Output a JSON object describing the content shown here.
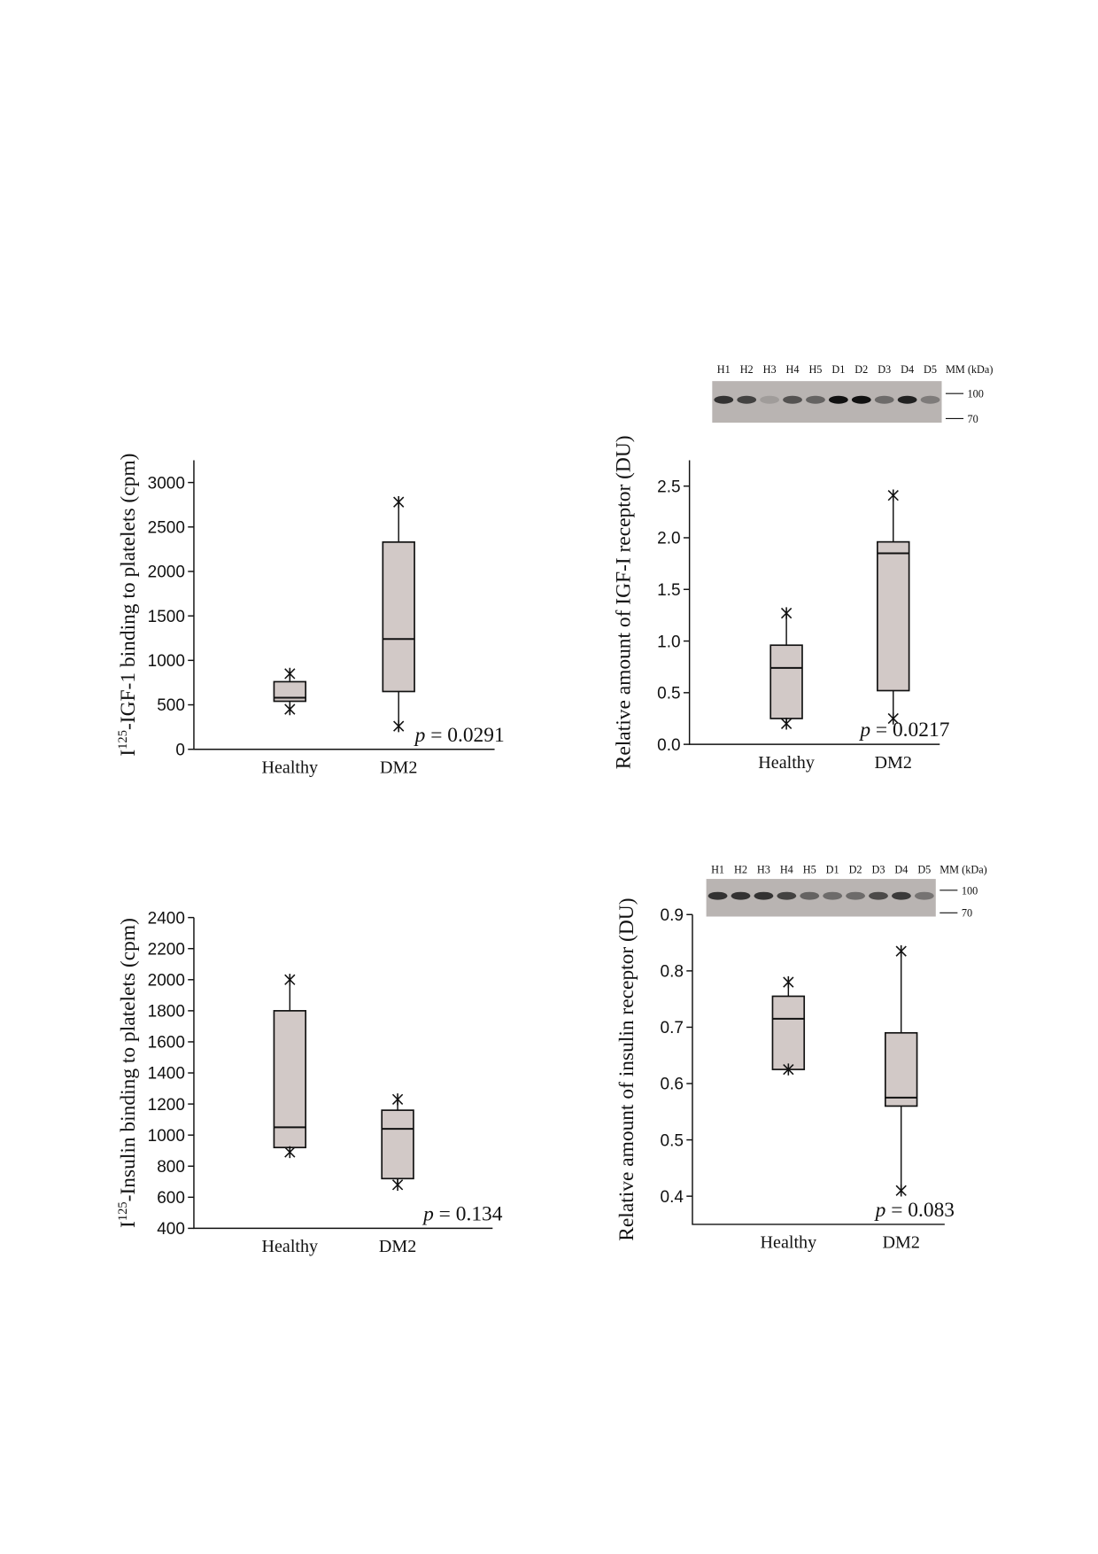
{
  "chart_data": [
    {
      "type": "box",
      "ylabel": [
        "I",
        "125",
        "-IGF-1 binding to platelets (cpm)"
      ],
      "categories": [
        "Healthy",
        "DM2"
      ],
      "color": "#d2c9c7",
      "boxes": [
        {
          "min": 450,
          "q1": 540,
          "median": 580,
          "q3": 760,
          "max": 850
        },
        {
          "min": 260,
          "q1": 650,
          "median": 1240,
          "q3": 2330,
          "max": 2780
        }
      ],
      "ylim": [
        0,
        3250
      ],
      "yticks": [
        0,
        500,
        1000,
        1500,
        2000,
        2500,
        3000
      ],
      "annotation": [
        "p",
        "= 0.0291"
      ]
    },
    {
      "type": "box",
      "ylabel": [
        "Relative amount of IGF-I receptor (DU)"
      ],
      "categories": [
        "Healthy",
        "DM2"
      ],
      "color": "#d2c9c7",
      "boxes": [
        {
          "min": 0.2,
          "q1": 0.25,
          "median": 0.74,
          "q3": 0.96,
          "max": 1.27
        },
        {
          "min": 0.25,
          "q1": 0.52,
          "median": 1.85,
          "q3": 1.96,
          "max": 2.41
        }
      ],
      "ylim": [
        0,
        2.75
      ],
      "yticks": [
        {
          "value": 0,
          "label": "0.0"
        },
        0.5,
        {
          "value": 1,
          "label": "1.0"
        },
        1.5,
        {
          "value": 2,
          "label": "2.0"
        },
        2.5
      ],
      "annotation": [
        "p",
        "= 0.0217"
      ],
      "blot": {
        "lanes": [
          "H1",
          "H2",
          "H3",
          "H4",
          "H5",
          "D1",
          "D2",
          "D3",
          "D4",
          "D5"
        ],
        "mm_label": "MM (kDa)",
        "markers": [
          100,
          70
        ]
      }
    },
    {
      "type": "box",
      "ylabel": [
        "I",
        "125",
        "-Insulin binding to platelets (cpm)"
      ],
      "categories": [
        "Healthy",
        "DM2"
      ],
      "color": "#d2c9c7",
      "boxes": [
        {
          "min": 890,
          "q1": 920,
          "median": 1050,
          "q3": 1800,
          "max": 2000
        },
        {
          "min": 680,
          "q1": 720,
          "median": 1040,
          "q3": 1160,
          "max": 1230
        }
      ],
      "ylim": [
        400,
        2400
      ],
      "yticks": [
        400,
        600,
        800,
        1000,
        1200,
        1400,
        1600,
        1800,
        2000,
        2200,
        2400
      ],
      "annotation": [
        "p",
        "= 0.134"
      ]
    },
    {
      "type": "box",
      "ylabel": [
        "Relative amount of insulin receptor (DU)"
      ],
      "categories": [
        "Healthy",
        "DM2"
      ],
      "color": "#d2c9c7",
      "boxes": [
        {
          "min": 0.625,
          "q1": 0.625,
          "median": 0.715,
          "q3": 0.755,
          "max": 0.78
        },
        {
          "min": 0.41,
          "q1": 0.56,
          "median": 0.575,
          "q3": 0.69,
          "max": 0.835
        }
      ],
      "ylim": [
        0.35,
        0.9
      ],
      "yticks": [
        0.4,
        0.5,
        0.6,
        0.7,
        0.8,
        0.9
      ],
      "annotation": [
        "p",
        "= 0.083"
      ],
      "blot": {
        "lanes": [
          "H1",
          "H2",
          "H3",
          "H4",
          "H5",
          "D1",
          "D2",
          "D3",
          "D4",
          "D5"
        ],
        "mm_label": "MM (kDa)",
        "markers": [
          100,
          70
        ]
      }
    }
  ]
}
